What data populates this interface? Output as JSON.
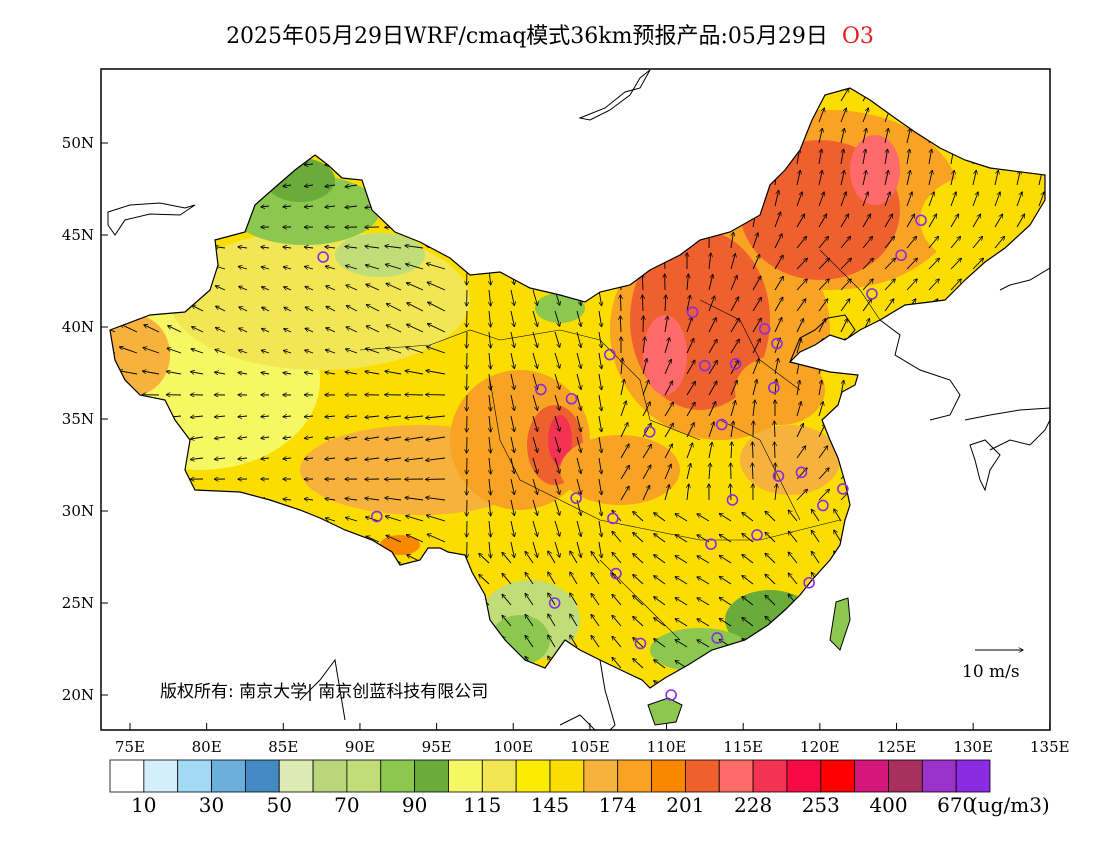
{
  "title": {
    "text": "2025年05月29日WRF/cmaq模式36km预报产品:05月29日",
    "pollutant": "O3"
  },
  "axes": {
    "lat_ticks": [
      "50N",
      "45N",
      "40N",
      "35N",
      "30N",
      "25N",
      "20N"
    ],
    "lon_ticks": [
      "75E",
      "80E",
      "85E",
      "90E",
      "95E",
      "100E",
      "105E",
      "110E",
      "115E",
      "120E",
      "125E",
      "130E",
      "135E"
    ],
    "lon_range": [
      73,
      135
    ],
    "lat_range": [
      18,
      54
    ]
  },
  "copyright": "版权所有: 南京大学| 南京创蓝科技有限公司",
  "wind_scale_label": "10 m/s",
  "colorbar": {
    "colors": [
      "#ffffff",
      "#d4eefa",
      "#a3daf3",
      "#6bb0dd",
      "#4489c4",
      "#dfe9b4",
      "#b9d67a",
      "#c0dd78",
      "#8cc850",
      "#6aab3a",
      "#f5f862",
      "#f2e655",
      "#fcec00",
      "#fbde00",
      "#f6b23c",
      "#f8a323",
      "#fa8700",
      "#ee602e",
      "#ff6a6a",
      "#f43352",
      "#f50a46",
      "#ff0000",
      "#d4167b",
      "#a8305c",
      "#9933cc",
      "#8a2be2"
    ],
    "labels": [
      "10",
      "30",
      "50",
      "70",
      "90",
      "115",
      "145",
      "174",
      "201",
      "228",
      "253",
      "400",
      "670"
    ],
    "unit": "(ug/m3)"
  },
  "sites": [
    [
      87.6,
      43.8
    ],
    [
      91.1,
      29.7
    ],
    [
      101.8,
      36.6
    ],
    [
      103.8,
      36.1
    ],
    [
      106.3,
      38.5
    ],
    [
      111.7,
      40.8
    ],
    [
      112.5,
      37.9
    ],
    [
      114.5,
      38.0
    ],
    [
      116.4,
      39.9
    ],
    [
      117.2,
      39.1
    ],
    [
      117.0,
      36.7
    ],
    [
      113.6,
      34.7
    ],
    [
      108.9,
      34.3
    ],
    [
      104.1,
      30.7
    ],
    [
      106.5,
      29.6
    ],
    [
      106.7,
      26.6
    ],
    [
      102.7,
      25.0
    ],
    [
      108.3,
      22.8
    ],
    [
      113.3,
      23.1
    ],
    [
      110.3,
      20.0
    ],
    [
      119.3,
      26.1
    ],
    [
      115.9,
      28.7
    ],
    [
      112.9,
      28.2
    ],
    [
      114.3,
      30.6
    ],
    [
      117.3,
      31.9
    ],
    [
      118.8,
      32.1
    ],
    [
      120.2,
      30.3
    ],
    [
      121.5,
      31.2
    ],
    [
      123.4,
      41.8
    ],
    [
      125.3,
      43.9
    ],
    [
      126.6,
      45.8
    ]
  ],
  "colors": {
    "frame": "#000000",
    "site_marker": "#8a2be2",
    "title_tag": "#e02020"
  }
}
